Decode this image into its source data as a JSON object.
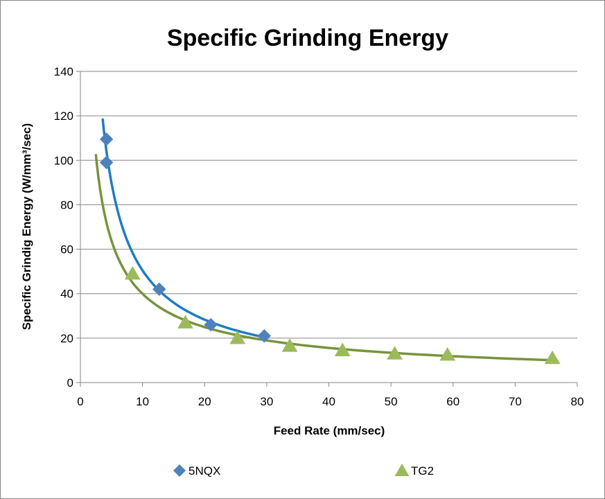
{
  "chart_data": {
    "type": "scatter",
    "title": "Specific Grinding Energy",
    "xlabel": "Feed Rate (mm/sec)",
    "ylabel": "Specific Grindig Energy  (W/mm³/sec)",
    "xlim": [
      0,
      80
    ],
    "ylim": [
      0,
      140
    ],
    "xticks": [
      0,
      10,
      20,
      30,
      40,
      50,
      60,
      70,
      80
    ],
    "yticks": [
      0,
      20,
      40,
      60,
      80,
      100,
      120,
      140
    ],
    "grid": "horizontal",
    "legend": "bottom",
    "series": [
      {
        "name": "5NQX",
        "marker": "diamond",
        "color": "#4F81BD",
        "trend_color": "#1F7CC1",
        "trendline": "power",
        "x": [
          4.2,
          4.2,
          12.7,
          21.0,
          29.6
        ],
        "y": [
          109.5,
          99.0,
          42.0,
          26.0,
          21.0
        ]
      },
      {
        "name": "TG2",
        "marker": "triangle",
        "color": "#9BBB59",
        "trend_color": "#77933C",
        "trendline": "power",
        "x": [
          8.4,
          16.9,
          25.3,
          33.7,
          42.2,
          50.6,
          59.1,
          76.0
        ],
        "y": [
          49.0,
          27.0,
          20.0,
          16.5,
          14.5,
          13.0,
          12.5,
          11.0
        ]
      }
    ]
  }
}
